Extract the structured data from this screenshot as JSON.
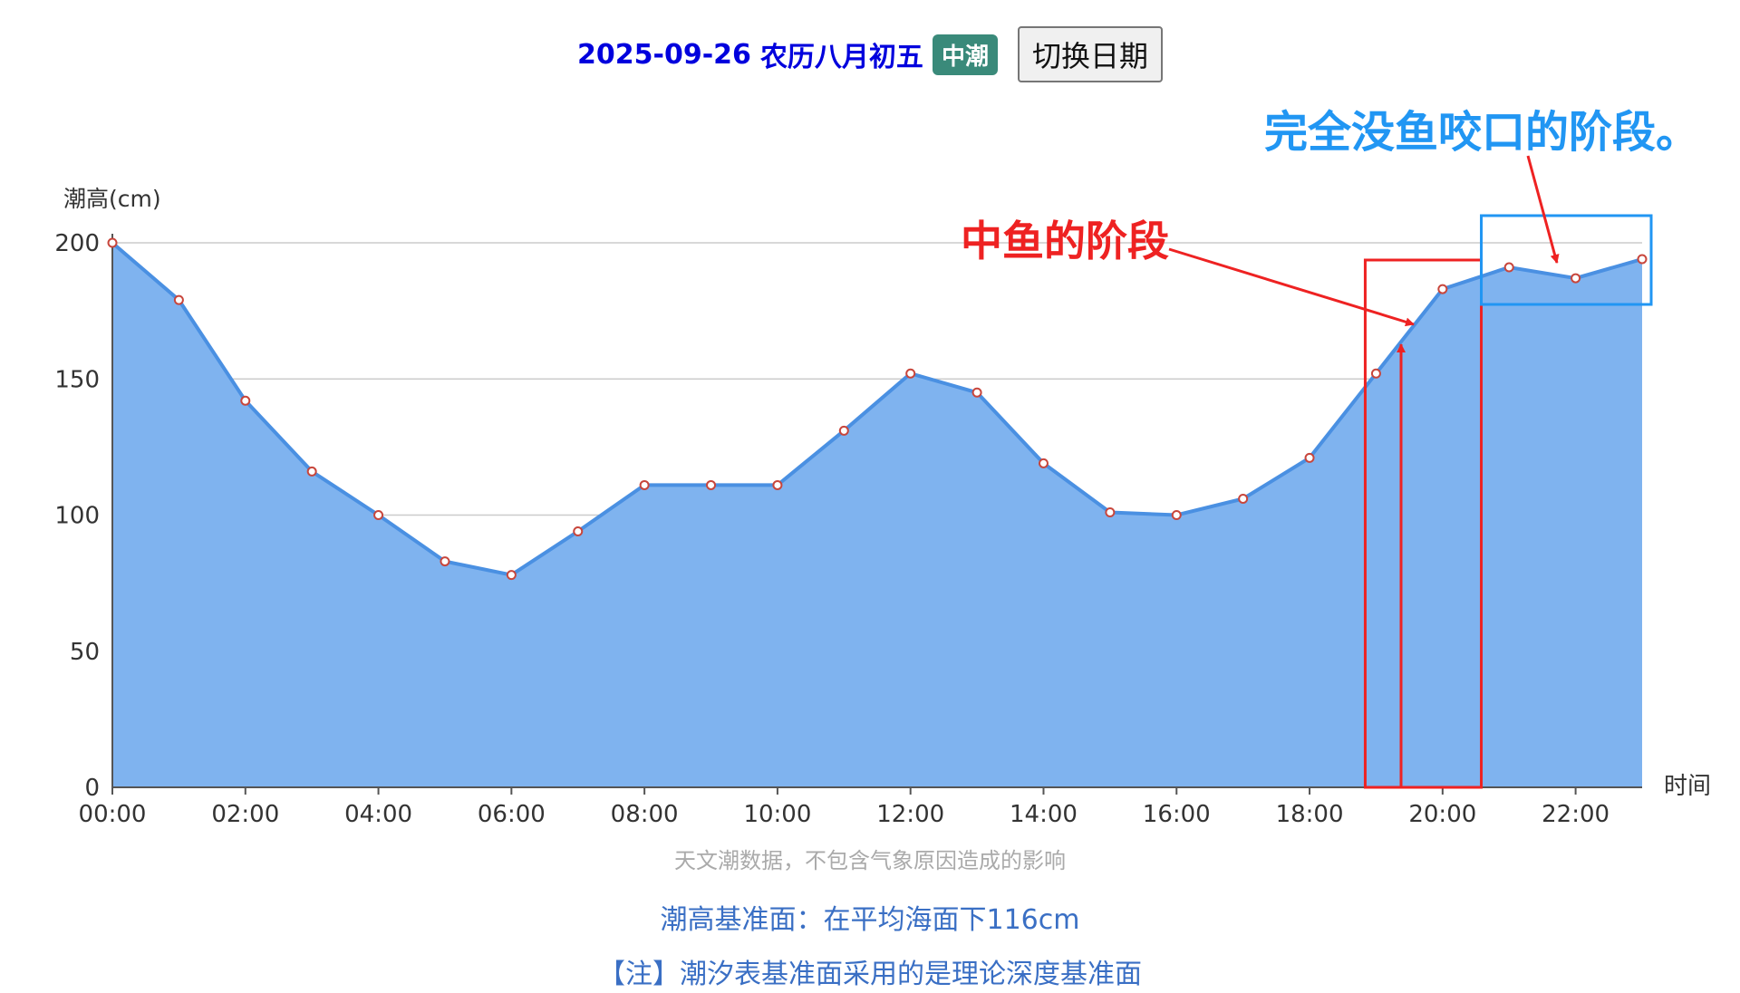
{
  "header": {
    "date": "2025-09-26",
    "lunar": "农历八月初五",
    "tide_type": "中潮",
    "switch_button": "切换日期"
  },
  "chart_data": {
    "type": "area",
    "ylabel": "潮高(cm)",
    "xlabel": "时间",
    "ylim": [
      0,
      200
    ],
    "yticks": [
      0,
      50,
      100,
      150,
      200
    ],
    "x": [
      "00:00",
      "01:00",
      "02:00",
      "03:00",
      "04:00",
      "05:00",
      "06:00",
      "07:00",
      "08:00",
      "09:00",
      "10:00",
      "11:00",
      "12:00",
      "13:00",
      "14:00",
      "15:00",
      "16:00",
      "17:00",
      "18:00",
      "19:00",
      "20:00",
      "21:00",
      "22:00",
      "23:00"
    ],
    "xtick_labels": [
      "00:00",
      "02:00",
      "04:00",
      "06:00",
      "08:00",
      "10:00",
      "12:00",
      "14:00",
      "16:00",
      "18:00",
      "20:00",
      "22:00"
    ],
    "series": [
      {
        "values": [
          200,
          179,
          142,
          116,
          100,
          83,
          78,
          94,
          111,
          111,
          111,
          131,
          152,
          145,
          119,
          101,
          100,
          106,
          121,
          152,
          183,
          191,
          187,
          194
        ]
      }
    ],
    "grid": true,
    "colors": {
      "line": "#4a90e2",
      "area": "#7fb3ef",
      "marker_border": "#c8463c",
      "grid": "#cccccc"
    },
    "annotations": [
      {
        "text": "中鱼的阶段",
        "color": "#ee2222",
        "span": [
          "19:00",
          "20:30"
        ]
      },
      {
        "text": "完全没鱼咬口的阶段。",
        "color": "#2196f3",
        "span": [
          "20:30",
          "23:00"
        ]
      }
    ]
  },
  "footer": {
    "note1": "天文潮数据，不包含气象原因造成的影响",
    "note2": "潮高基准面：在平均海面下116cm",
    "note3": "【注】潮汐表基准面采用的是理论深度基准面"
  }
}
